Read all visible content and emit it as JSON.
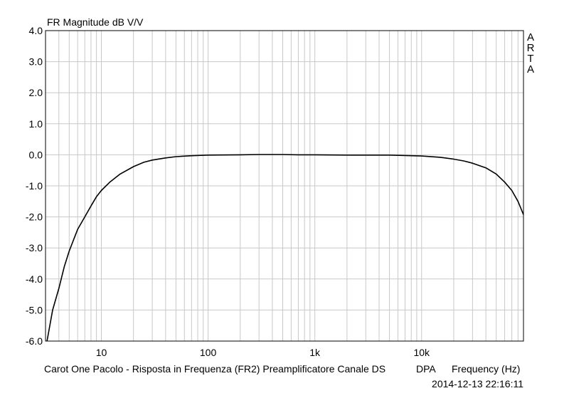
{
  "chart_data": {
    "type": "line",
    "title": "FR Magnitude dB V/V",
    "xlabel": "Frequency (Hz)",
    "x_scale": "log",
    "xlim": [
      3,
      90000
    ],
    "ylim": [
      -6.0,
      4.0
    ],
    "x_ticks": [
      {
        "value": 10,
        "label": "10"
      },
      {
        "value": 100,
        "label": "100"
      },
      {
        "value": 1000,
        "label": "1k"
      },
      {
        "value": 10000,
        "label": "10k"
      }
    ],
    "y_ticks": [
      {
        "value": 4,
        "label": "4.0"
      },
      {
        "value": 3,
        "label": "3.0"
      },
      {
        "value": 2,
        "label": "2.0"
      },
      {
        "value": 1,
        "label": "1.0"
      },
      {
        "value": 0,
        "label": "0.0"
      },
      {
        "value": -1,
        "label": "-1.0"
      },
      {
        "value": -2,
        "label": "-2.0"
      },
      {
        "value": -3,
        "label": "-3.0"
      },
      {
        "value": -4,
        "label": "-4.0"
      },
      {
        "value": -5,
        "label": "-5.0"
      },
      {
        "value": -6,
        "label": "-6.0"
      }
    ],
    "grid": true,
    "series": [
      {
        "color": "#000000",
        "x": [
          3.1,
          3.5,
          4,
          4.5,
          5,
          6,
          7,
          8,
          9,
          10,
          12,
          15,
          20,
          25,
          30,
          40,
          50,
          70,
          100,
          200,
          300,
          500,
          700,
          1000,
          2000,
          5000,
          10000,
          15000,
          20000,
          25000,
          30000,
          40000,
          50000,
          60000,
          70000,
          80000,
          90000
        ],
        "y": [
          -6.0,
          -5.0,
          -4.3,
          -3.6,
          -3.1,
          -2.4,
          -2.0,
          -1.65,
          -1.35,
          -1.15,
          -0.88,
          -0.62,
          -0.38,
          -0.24,
          -0.17,
          -0.1,
          -0.06,
          -0.03,
          -0.01,
          0.0,
          0.01,
          0.01,
          0.0,
          0.0,
          -0.01,
          -0.01,
          -0.04,
          -0.08,
          -0.14,
          -0.2,
          -0.27,
          -0.42,
          -0.62,
          -0.88,
          -1.15,
          -1.5,
          -1.93
        ]
      }
    ]
  },
  "side_label": [
    "A",
    "R",
    "T",
    "A"
  ],
  "footer": {
    "description": "Carot One Pacolo - Risposta in Frequenza (FR2) Preamplificatore Canale DS",
    "mode": "DPA",
    "xlabel": "Frequency (Hz)",
    "timestamp": "2014-12-13  22:16:11"
  },
  "colors": {
    "grid": "#c8c8c8",
    "line": "#000000",
    "frame": "#000000"
  }
}
